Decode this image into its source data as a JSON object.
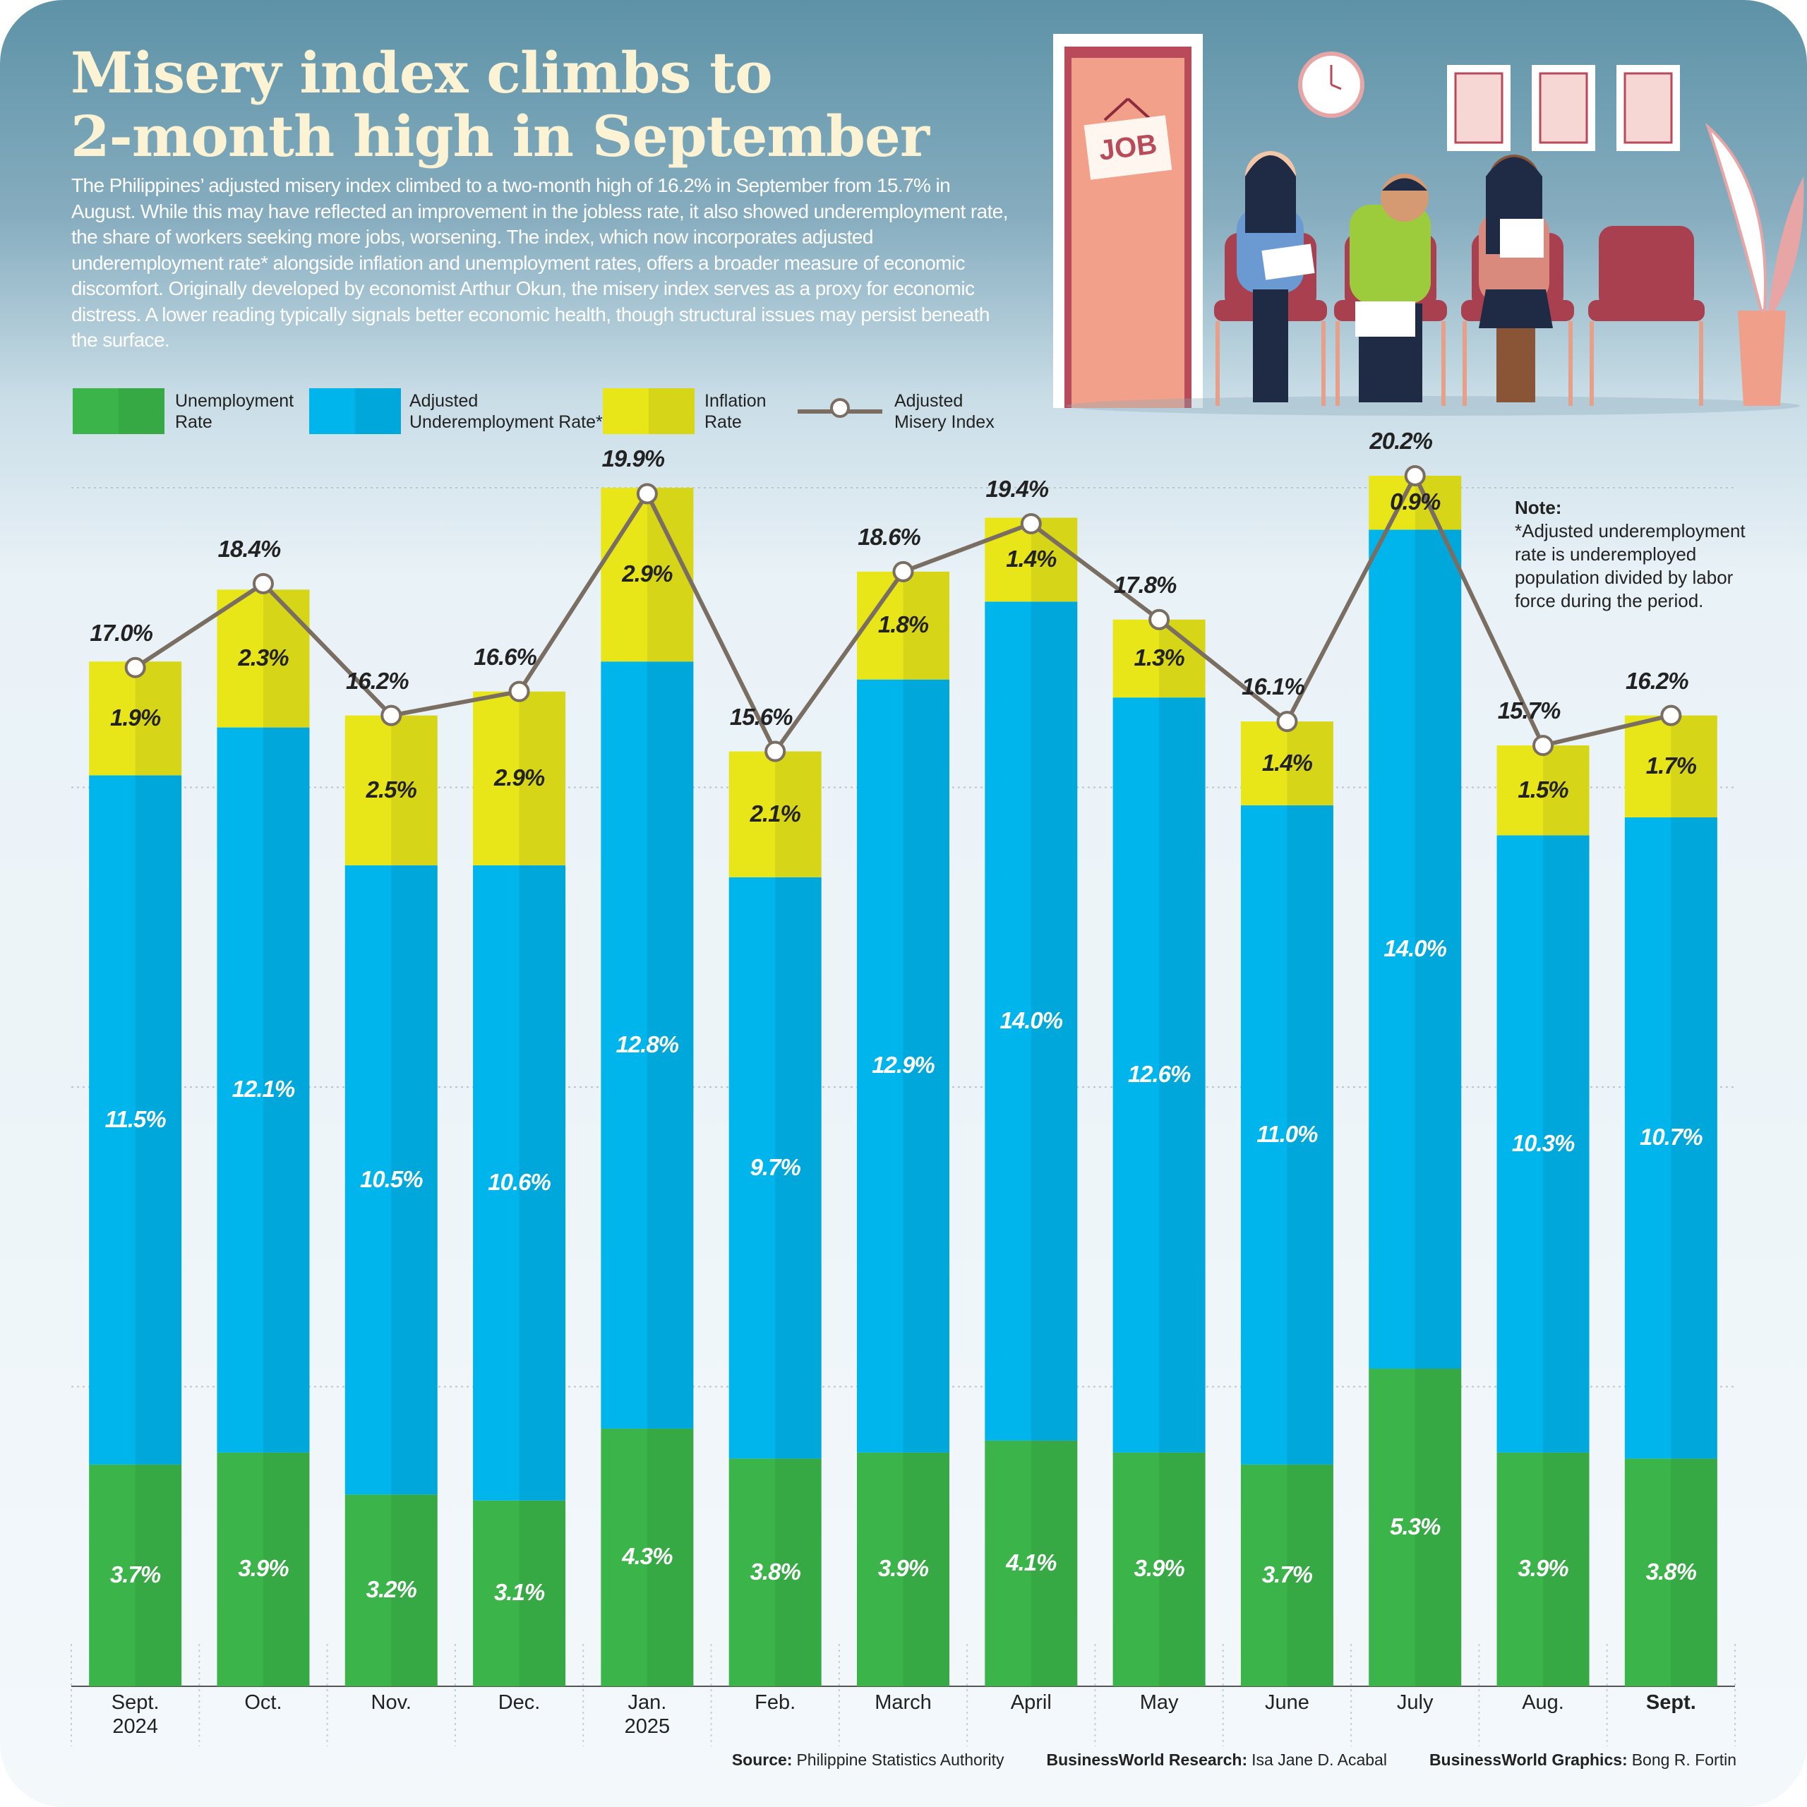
{
  "header": {
    "title": "Misery index climbs to\n2-month high in September",
    "body": "The Philippines’ adjusted misery index climbed to a two-month high of 16.2% in September from 15.7% in August. While this may have reflected an improvement in the jobless rate, it also showed underemployment rate, the share of workers seeking more jobs, worsening. The index, which now incorporates adjusted underemployment rate* alongside inflation and unemployment rates, offers a broader measure of economic discomfort. Originally developed by economist Arthur Okun, the misery index serves as a proxy for economic distress. A lower reading typically signals better economic health, though structural issues may persist beneath the surface."
  },
  "illustration": {
    "sign": "JOB"
  },
  "chart_data": {
    "type": "bar",
    "stacked": true,
    "categories": [
      "Sept.\n2024",
      "Oct.",
      "Nov.",
      "Dec.",
      "Jan.\n2025",
      "Feb.",
      "March",
      "April",
      "May",
      "June",
      "July",
      "Aug.",
      "Sept."
    ],
    "series": [
      {
        "name": "Unemployment\nRate",
        "color": "#3bb54a",
        "values": [
          3.7,
          3.9,
          3.2,
          3.1,
          4.3,
          3.8,
          3.9,
          4.1,
          3.9,
          3.7,
          5.3,
          3.9,
          3.8
        ],
        "value_labels": [
          "3.7%",
          "3.9%",
          "3.2%",
          "3.1%",
          "4.3%",
          "3.8%",
          "3.9%",
          "4.1%",
          "3.9%",
          "3.7%",
          "5.3%",
          "3.9%",
          "3.8%"
        ]
      },
      {
        "name": "Adjusted\nUnderemployment Rate*",
        "color": "#00b4ec",
        "values": [
          11.5,
          12.1,
          10.5,
          10.6,
          12.8,
          9.7,
          12.9,
          14.0,
          12.6,
          11.0,
          14.0,
          10.3,
          10.7
        ],
        "value_labels": [
          "11.5%",
          "12.1%",
          "10.5%",
          "10.6%",
          "12.8%",
          "9.7%",
          "12.9%",
          "14.0%",
          "12.6%",
          "11.0%",
          "14.0%",
          "10.3%",
          "10.7%"
        ]
      },
      {
        "name": "Inflation\nRate",
        "color": "#e8e619",
        "values": [
          1.9,
          2.3,
          2.5,
          2.9,
          2.9,
          2.1,
          1.8,
          1.4,
          1.3,
          1.4,
          0.9,
          1.5,
          1.7
        ],
        "value_labels": [
          "1.9%",
          "2.3%",
          "2.5%",
          "2.9%",
          "2.9%",
          "2.1%",
          "1.8%",
          "1.4%",
          "1.3%",
          "1.4%",
          "0.9%",
          "1.5%",
          "1.7%"
        ]
      },
      {
        "name": "Adjusted\nMisery Index",
        "color": "#7a6e63",
        "type": "line",
        "values": [
          17.0,
          18.4,
          16.2,
          16.6,
          19.9,
          15.6,
          18.6,
          19.4,
          17.8,
          16.1,
          20.2,
          15.7,
          16.2
        ],
        "value_labels": [
          "17.0%",
          "18.4%",
          "16.2%",
          "16.6%",
          "19.9%",
          "15.6%",
          "18.6%",
          "19.4%",
          "17.8%",
          "16.1%",
          "20.2%",
          "15.7%",
          "16.2%"
        ]
      }
    ],
    "ylim": [
      0,
      20
    ],
    "yticks": [
      0,
      5,
      10,
      15,
      20
    ],
    "grid": true,
    "note": {
      "title": "Note:",
      "text": "*Adjusted underemployment rate is underemployed population divided by labor force during the period."
    },
    "footer": [
      {
        "label": "Source:",
        "text": "Philippine Statistics Authority"
      },
      {
        "label": "BusinessWorld Research:",
        "text": "Isa Jane D. Acabal"
      },
      {
        "label": "BusinessWorld Graphics:",
        "text": "Bong R. Fortin"
      }
    ]
  }
}
